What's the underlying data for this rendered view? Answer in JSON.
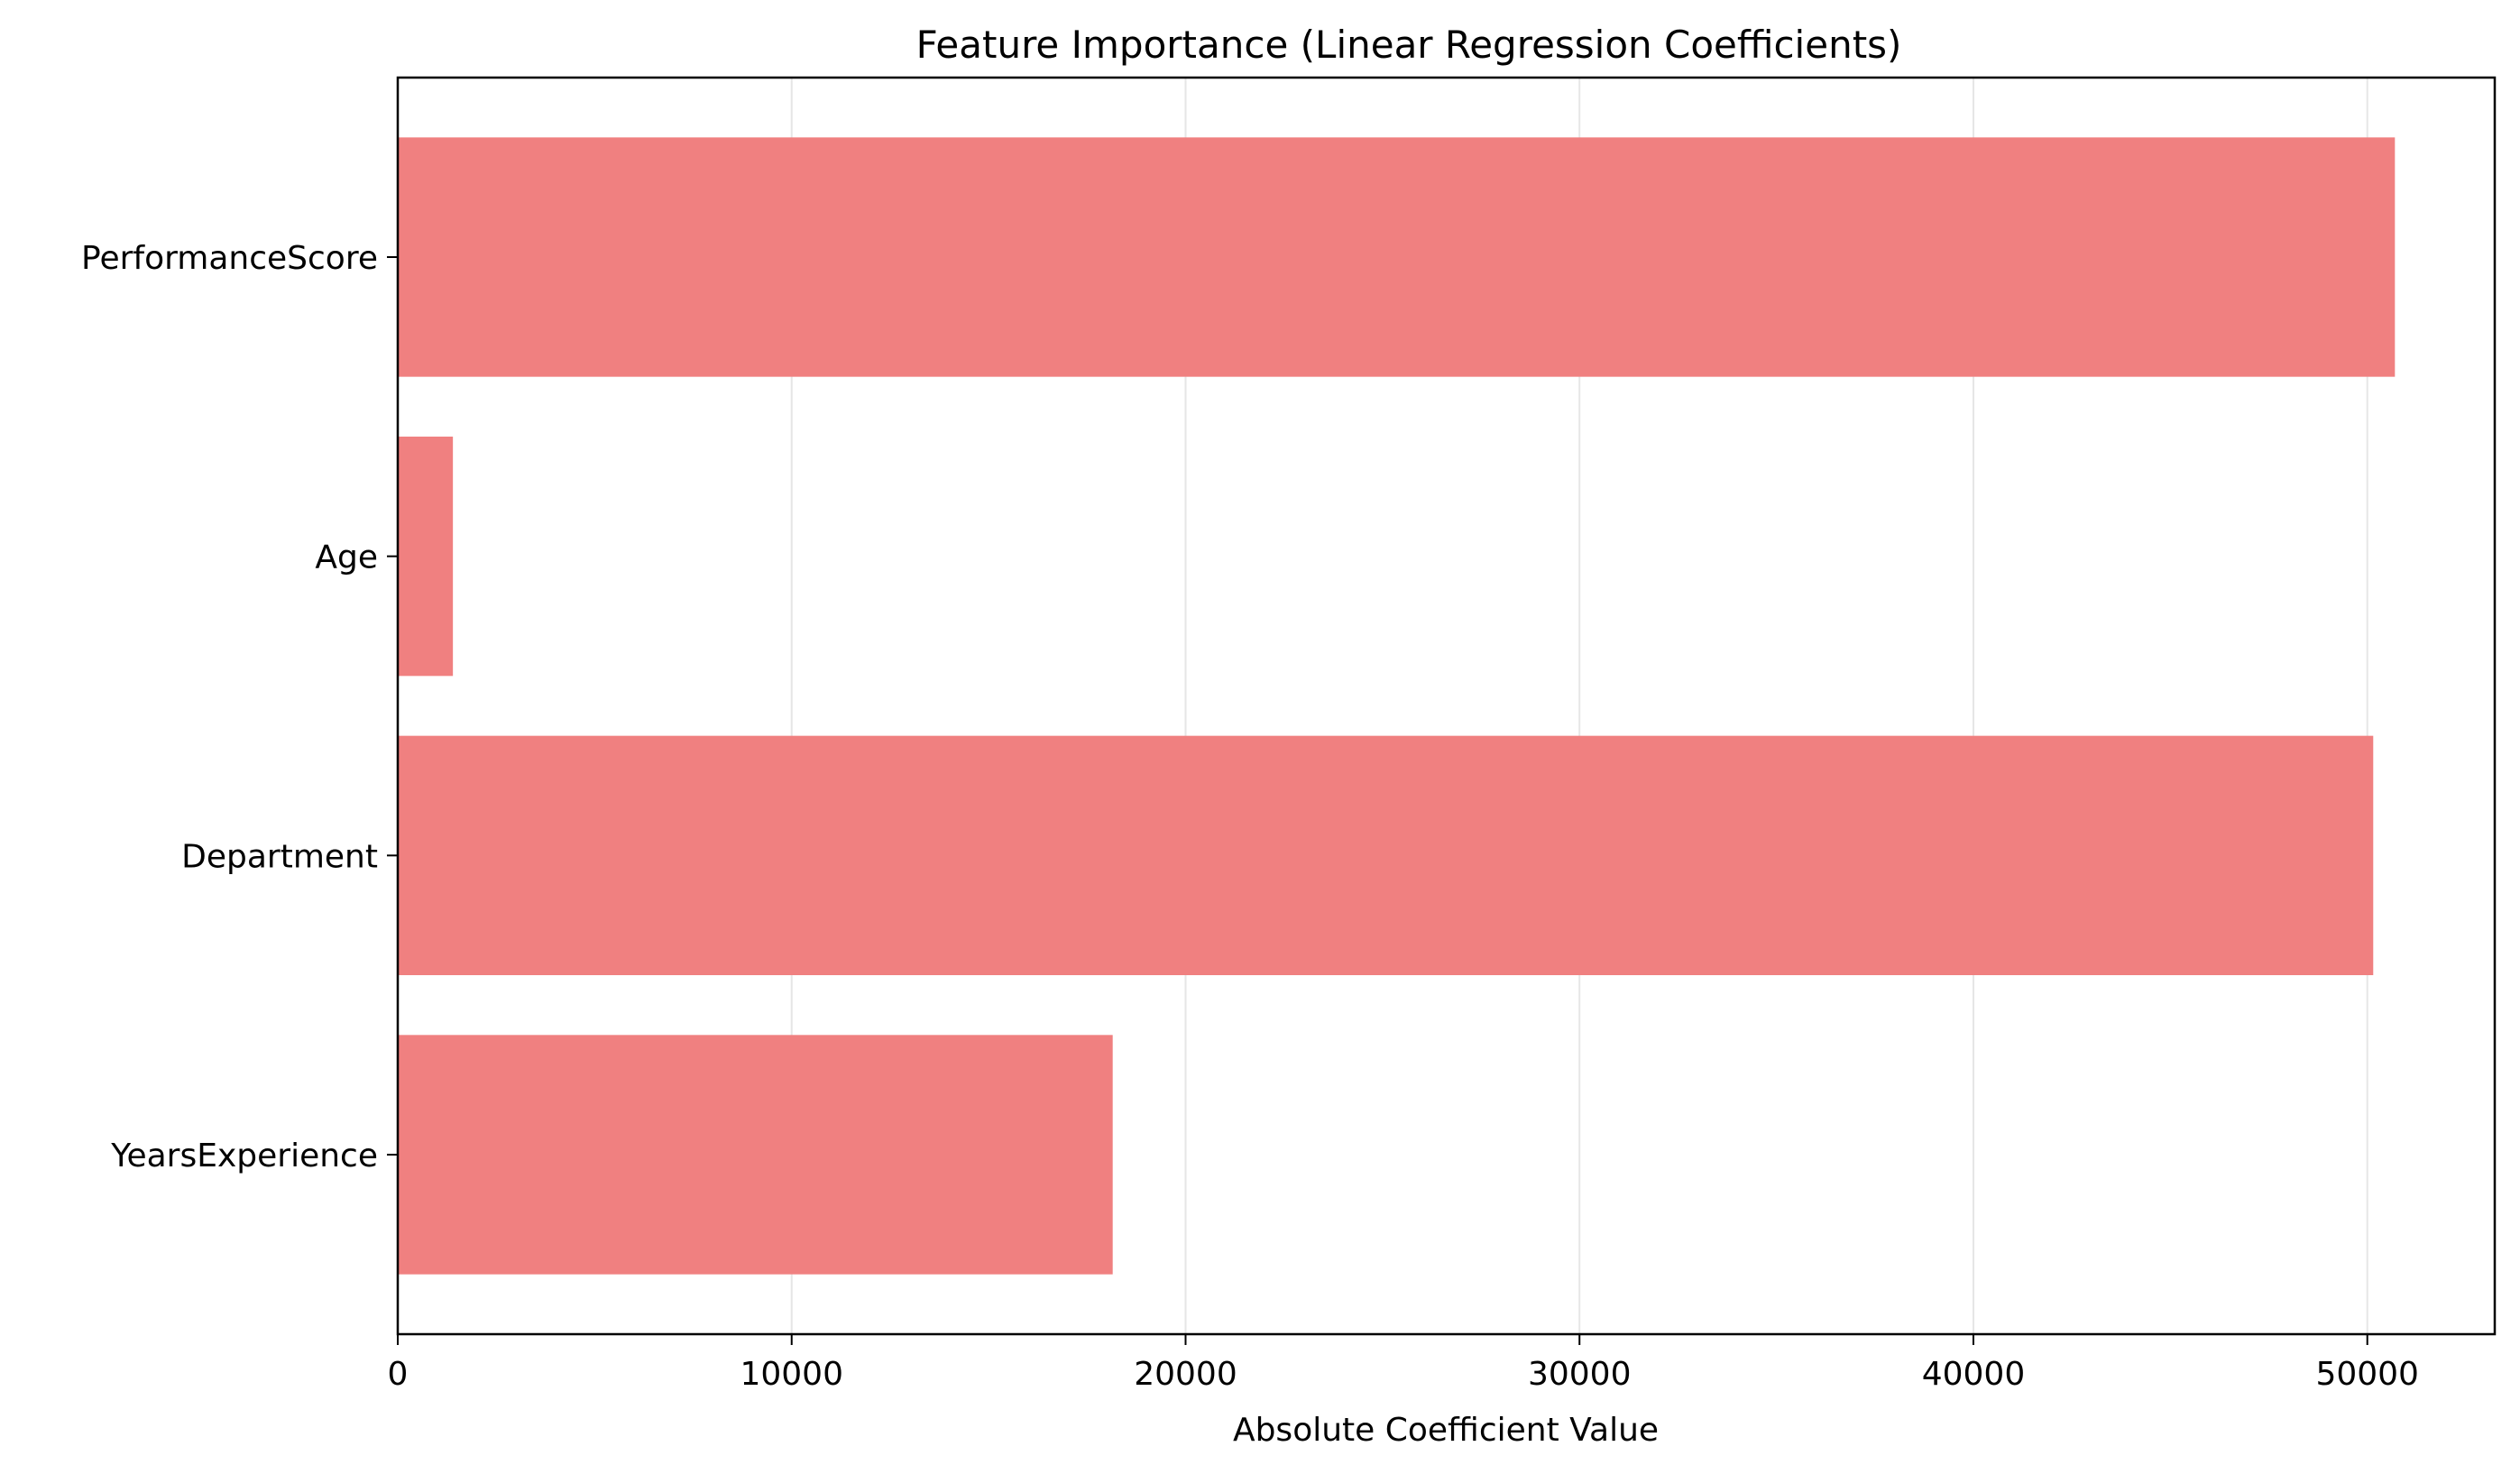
{
  "chart_data": {
    "type": "bar",
    "orientation": "horizontal",
    "title": "Feature Importance (Linear Regression Coefficients)",
    "xlabel": "Absolute Coefficient Value",
    "ylabel": "",
    "categories": [
      "YearsExperience",
      "Department",
      "Age",
      "PerformanceScore"
    ],
    "values": [
      18150,
      50150,
      1400,
      50700
    ],
    "xlim": [
      0,
      53235
    ],
    "xticks": [
      0,
      10000,
      20000,
      30000,
      40000,
      50000
    ],
    "xtick_labels": [
      "0",
      "10000",
      "20000",
      "30000",
      "40000",
      "50000"
    ],
    "grid": "x",
    "bar_color": "#F08080",
    "grid_color": "#e6e6e6"
  }
}
